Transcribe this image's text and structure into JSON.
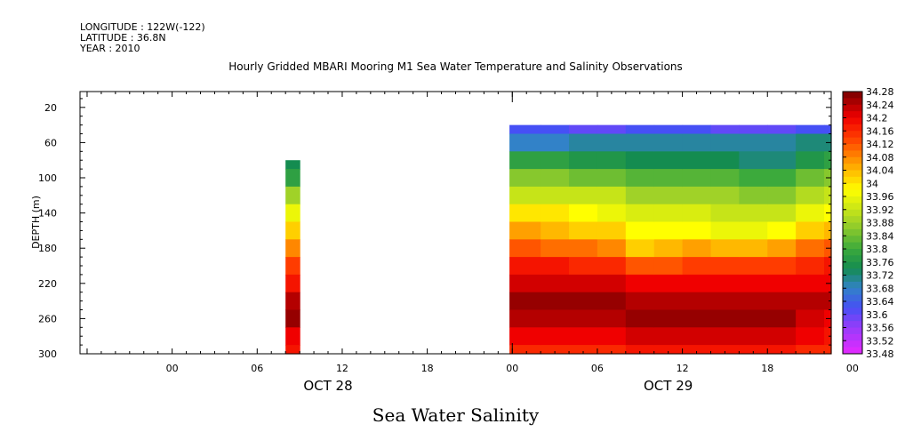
{
  "meta": {
    "longitude": "LONGITUDE : 122W(-122)",
    "latitude": "LATITUDE : 36.8N",
    "year": "YEAR : 2010"
  },
  "chart_data": {
    "type": "heatmap",
    "title": "Hourly Gridded MBARI Mooring M1 Sea Water Temperature and Salinity Observations",
    "bottom_title": "Sea Water Salinity",
    "ylabel": "DEPTH (m)",
    "y_inverted": true,
    "ylim": [
      300,
      2
    ],
    "y_ticks": [
      20,
      60,
      100,
      140,
      180,
      220,
      260,
      300
    ],
    "x_unit": "hours since OCT 28 00:00",
    "xlim": [
      -6.5,
      46.5
    ],
    "x_ticks": [
      {
        "h": 0,
        "label": "00"
      },
      {
        "h": 6,
        "label": "06"
      },
      {
        "h": 12,
        "label": "12"
      },
      {
        "h": 18,
        "label": "18"
      },
      {
        "h": 24,
        "label": "00"
      },
      {
        "h": 30,
        "label": "06"
      },
      {
        "h": 36,
        "label": "12"
      },
      {
        "h": 42,
        "label": "18"
      },
      {
        "h": 48,
        "label": "00"
      }
    ],
    "day_labels": [
      {
        "h": 11,
        "label": "OCT 28"
      },
      {
        "h": 35,
        "label": "OCT 29"
      }
    ],
    "colorbar": {
      "labels": [
        "34.28",
        "34.24",
        "34.2",
        "34.16",
        "34.12",
        "34.08",
        "34.04",
        "34",
        "33.96",
        "33.92",
        "33.88",
        "33.84",
        "33.8",
        "33.76",
        "33.72",
        "33.68",
        "33.64",
        "33.6",
        "33.56",
        "33.52",
        "33.48"
      ],
      "min": 33.48,
      "max": 34.28,
      "step": 0.02
    },
    "depths": [
      40,
      60,
      80,
      100,
      120,
      140,
      160,
      180,
      200,
      220,
      240,
      260,
      280,
      300
    ],
    "blocks": [
      {
        "name": "OCT 28 08h column",
        "hours": [
          8
        ],
        "hour_width": 1,
        "depth_start": 80,
        "profiles": [
          [
            null,
            null,
            33.74,
            33.78,
            33.88,
            33.96,
            34.02,
            34.08,
            34.14,
            34.18,
            34.24,
            34.26,
            34.2,
            34.18
          ]
        ]
      },
      {
        "name": "OCT 29 continuous",
        "hours": [
          23.8,
          26,
          28,
          30,
          32,
          34,
          36,
          38,
          40,
          42,
          44,
          46,
          46.5
        ],
        "hour_width": null,
        "depth_start": 40,
        "profiles": [
          [
            33.62,
            33.68,
            33.78,
            33.86,
            33.92,
            34.0,
            34.06,
            34.12,
            34.18,
            34.22,
            34.26,
            34.24,
            34.2,
            34.16
          ],
          [
            33.62,
            33.68,
            33.78,
            33.86,
            33.92,
            34.0,
            34.04,
            34.1,
            34.18,
            34.22,
            34.26,
            34.24,
            34.2,
            34.16
          ],
          [
            33.6,
            33.7,
            33.76,
            33.84,
            33.92,
            33.98,
            34.02,
            34.1,
            34.16,
            34.22,
            34.26,
            34.24,
            34.2,
            34.16
          ],
          [
            33.6,
            33.7,
            33.76,
            33.84,
            33.92,
            33.96,
            34.02,
            34.08,
            34.16,
            34.22,
            34.26,
            34.24,
            34.2,
            34.16
          ],
          [
            33.62,
            33.7,
            33.74,
            33.82,
            33.88,
            33.94,
            33.98,
            34.02,
            34.12,
            34.2,
            34.24,
            34.26,
            34.22,
            34.18
          ],
          [
            33.62,
            33.7,
            33.74,
            33.82,
            33.88,
            33.94,
            33.98,
            34.04,
            34.12,
            34.2,
            34.24,
            34.26,
            34.22,
            34.18
          ],
          [
            33.62,
            33.7,
            33.74,
            33.82,
            33.88,
            33.94,
            33.98,
            34.06,
            34.14,
            34.2,
            34.24,
            34.26,
            34.22,
            34.18
          ],
          [
            33.6,
            33.7,
            33.74,
            33.82,
            33.88,
            33.92,
            33.96,
            34.04,
            34.14,
            34.2,
            34.24,
            34.26,
            34.22,
            34.18
          ],
          [
            33.6,
            33.7,
            33.72,
            33.8,
            33.86,
            33.92,
            33.96,
            34.04,
            34.14,
            34.2,
            34.24,
            34.26,
            34.22,
            34.18
          ],
          [
            33.6,
            33.7,
            33.72,
            33.8,
            33.86,
            33.92,
            33.98,
            34.06,
            34.14,
            34.2,
            34.24,
            34.26,
            34.22,
            34.18
          ],
          [
            33.62,
            33.72,
            33.76,
            33.84,
            33.9,
            33.96,
            34.02,
            34.1,
            34.16,
            34.2,
            34.24,
            34.22,
            34.2,
            34.16
          ],
          [
            33.62,
            33.72,
            33.78,
            33.86,
            33.92,
            33.98,
            34.04,
            34.12,
            34.18,
            34.2,
            34.24,
            34.2,
            34.18,
            34.16
          ],
          [
            33.62,
            33.72,
            33.78,
            33.86,
            33.92,
            33.98,
            34.04,
            34.12,
            34.18,
            34.2,
            34.24,
            34.2,
            34.18,
            34.16
          ]
        ]
      }
    ]
  }
}
